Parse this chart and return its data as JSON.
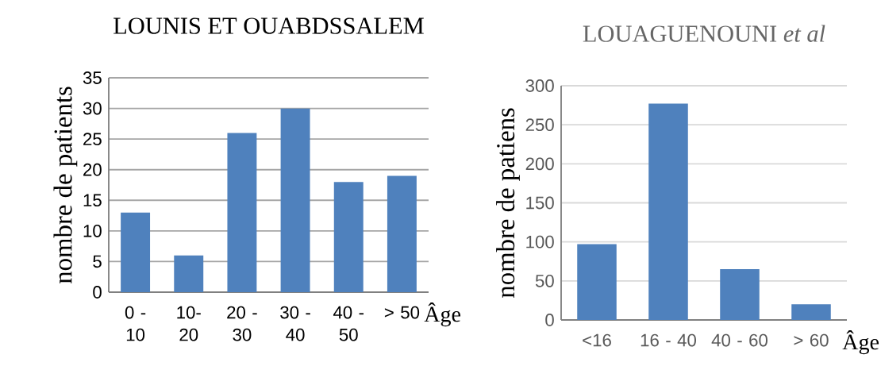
{
  "chart_data": [
    {
      "type": "bar",
      "title": "LOUNIS ET OUABDSSALEM",
      "xlabel": "Âge",
      "ylabel": "nombre de patients",
      "categories": [
        "0 - 10",
        "10- 20",
        "20 - 30",
        "30 - 40",
        "40 - 50",
        "> 50"
      ],
      "values": [
        13,
        6,
        26,
        30,
        18,
        19
      ],
      "color": "#4f81bd",
      "ylim": [
        0,
        35
      ],
      "yticks": [
        0,
        5,
        10,
        15,
        20,
        25,
        30,
        35
      ],
      "grid": "y"
    },
    {
      "type": "bar",
      "title": "LOUAGUENOUNI *et al*",
      "xlabel": "Âge",
      "ylabel": "nombre  de patiens",
      "categories": [
        "<16",
        "16 - 40",
        "40 - 60",
        "> 60"
      ],
      "values": [
        97,
        277,
        65,
        20
      ],
      "color": "#4f81bd",
      "ylim": [
        0,
        300
      ],
      "yticks": [
        0,
        50,
        100,
        150,
        200,
        250,
        300
      ],
      "grid": "y"
    }
  ]
}
